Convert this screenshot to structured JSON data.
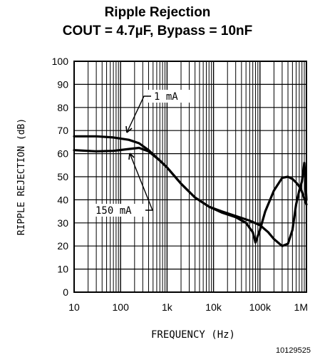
{
  "chart_data": {
    "type": "line",
    "title": "Ripple Rejection",
    "subtitle": "COUT = 4.7µF, Bypass = 10nF",
    "xlabel": "FREQUENCY (Hz)",
    "ylabel": "RIPPLE REJECTION (dB)",
    "x_scale": "log",
    "xlim": [
      10,
      1000000
    ],
    "ylim": [
      0,
      100
    ],
    "grid": true,
    "x_ticks": [
      {
        "value": 10,
        "label": "10"
      },
      {
        "value": 100,
        "label": "100"
      },
      {
        "value": 1000,
        "label": "1k"
      },
      {
        "value": 10000,
        "label": "10k"
      },
      {
        "value": 100000,
        "label": "100k"
      },
      {
        "value": 1000000,
        "label": "1M"
      }
    ],
    "y_ticks": [
      0,
      10,
      20,
      30,
      40,
      50,
      60,
      70,
      80,
      90,
      100
    ],
    "series": [
      {
        "name": "1 mA",
        "x": [
          10,
          30,
          70,
          150,
          250,
          400,
          700,
          1000,
          2000,
          4000,
          8000,
          15000,
          30000,
          50000,
          70000,
          80000,
          100000,
          130000,
          200000,
          300000,
          400000,
          500000,
          600000,
          750000,
          1000000
        ],
        "y": [
          67.5,
          67.5,
          67,
          66,
          64.5,
          61.5,
          57,
          54,
          47,
          41,
          37,
          34.5,
          32.5,
          30,
          26,
          21.5,
          27,
          35,
          44,
          49.5,
          50,
          49,
          47.5,
          45,
          38
        ]
      },
      {
        "name": "150 mA",
        "x": [
          10,
          30,
          70,
          150,
          250,
          400,
          700,
          1000,
          2000,
          4000,
          8000,
          15000,
          30000,
          60000,
          100000,
          150000,
          200000,
          300000,
          400000,
          500000,
          600000,
          700000,
          800000,
          900000,
          1000000
        ],
        "y": [
          61.5,
          61,
          61.2,
          62,
          62.5,
          61,
          57,
          54,
          47,
          41,
          37,
          35,
          33,
          31,
          29,
          26,
          23,
          20,
          21,
          27,
          38,
          44,
          48,
          56,
          40
        ]
      }
    ],
    "annotations": [
      {
        "text": "1 mA",
        "series": "1 mA"
      },
      {
        "text": "150 mA",
        "series": "150 mA"
      }
    ],
    "figure_id": "10129525"
  }
}
